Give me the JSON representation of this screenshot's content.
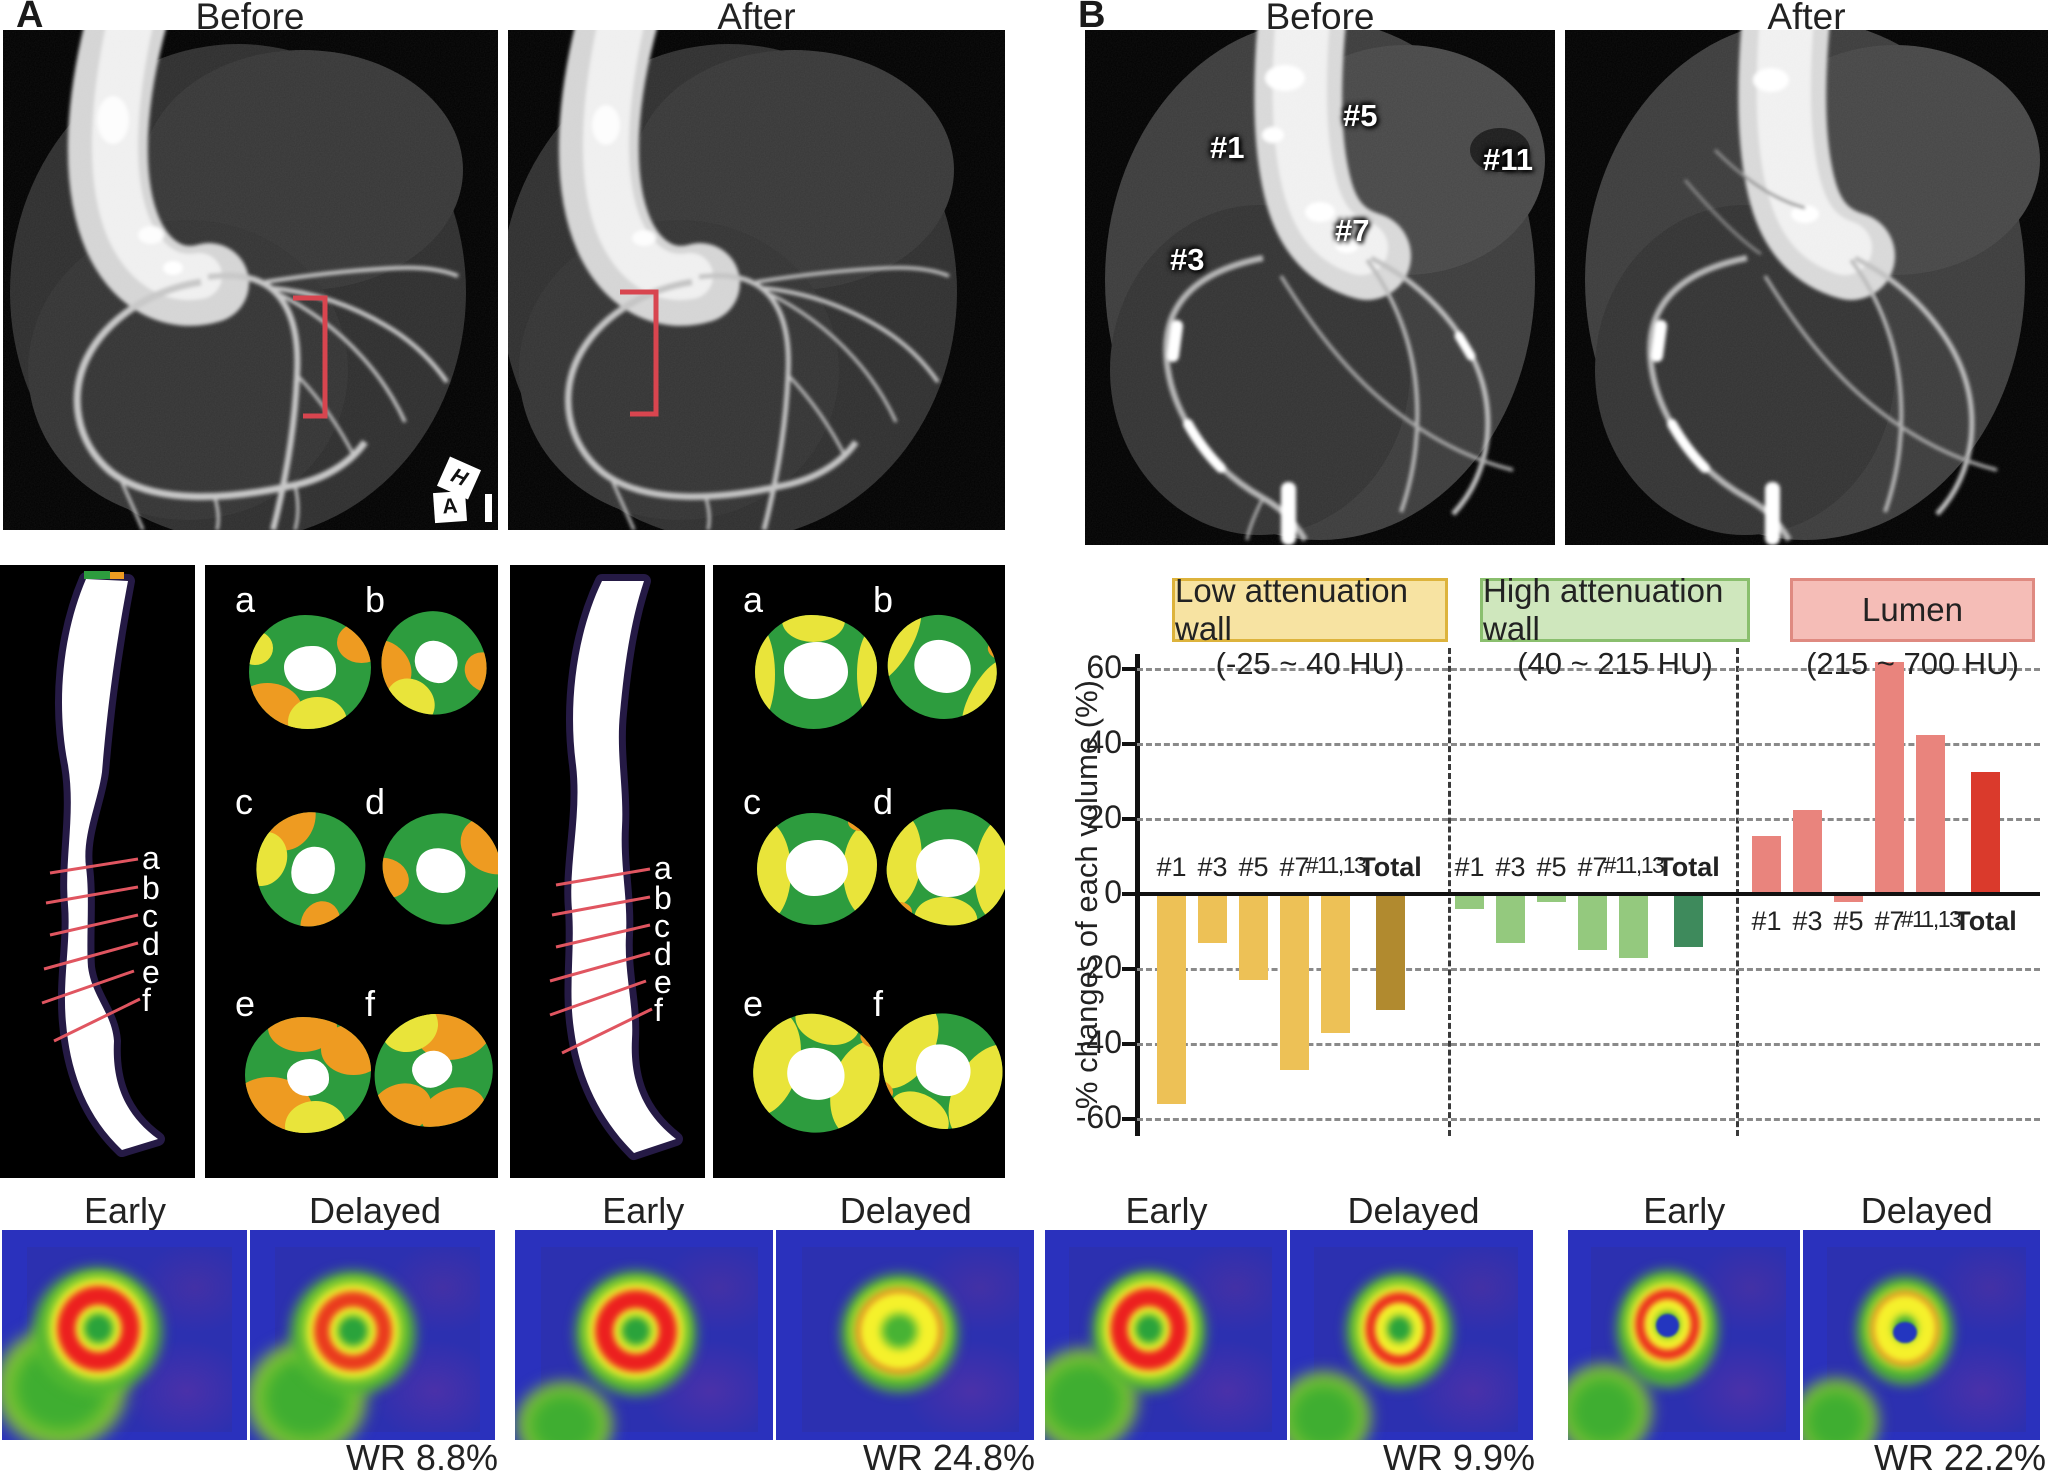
{
  "figure": {
    "panelA": {
      "label": "A",
      "before_title": "Before",
      "after_title": "After",
      "orientation_marker": {
        "h": "H",
        "a": "A"
      },
      "section_labels": [
        "a",
        "b",
        "c",
        "d",
        "e",
        "f"
      ],
      "annotation_color": "#d8454f",
      "scans": [
        {
          "early_label": "Early",
          "delayed_label": "Delayed",
          "wr_label": "WR 8.8%"
        },
        {
          "early_label": "Early",
          "delayed_label": "Delayed",
          "wr_label": "WR 24.8%"
        }
      ]
    },
    "panelB": {
      "label": "B",
      "before_title": "Before",
      "after_title": "After",
      "segments": [
        "#1",
        "#5",
        "#11",
        "#7",
        "#3",
        "#13"
      ],
      "scans": [
        {
          "early_label": "Early",
          "delayed_label": "Delayed",
          "wr_label": "WR 9.9%"
        },
        {
          "early_label": "Early",
          "delayed_label": "Delayed",
          "wr_label": "WR 22.2%"
        }
      ]
    }
  },
  "chart_data": {
    "type": "bar",
    "title": "",
    "ylabel": "% changes of each volume (%)",
    "ylim": [
      -60,
      70
    ],
    "yticks": [
      60,
      40,
      20,
      0,
      -20,
      -40,
      -60
    ],
    "grid": "dashed-horizontal",
    "legend_position": "top",
    "categories": [
      "#1",
      "#3",
      "#5",
      "#7",
      "#11,13",
      "Total"
    ],
    "groups": [
      {
        "name": "Low attenuation wall",
        "range": "(-25 ~ 40 HU)",
        "values": [
          -56,
          -13,
          -23,
          -47,
          -37,
          -31
        ],
        "bar_color": "#edc156",
        "total_bar_color": "#b18a2f",
        "header_fill": "#f7e3a2",
        "header_border": "#ddb33c",
        "category_labels_position": "above"
      },
      {
        "name": "High attenuation wall",
        "range": "(40 ~ 215 HU)",
        "values": [
          -4,
          -13,
          -2,
          -15,
          -17,
          -14
        ],
        "bar_color": "#94c97e",
        "total_bar_color": "#3e8a5c",
        "header_fill": "#cfe7bd",
        "header_border": "#8abf6e",
        "category_labels_position": "above"
      },
      {
        "name": "Lumen",
        "range": "(215 ~ 700 HU)",
        "values": [
          15.5,
          22.5,
          -2,
          62,
          42.5,
          32.5
        ],
        "bar_color": "#e9847d",
        "total_bar_color": "#da3a2c",
        "header_fill": "#f5bdb7",
        "header_border": "#df8a81",
        "category_labels_position": "below"
      }
    ]
  }
}
